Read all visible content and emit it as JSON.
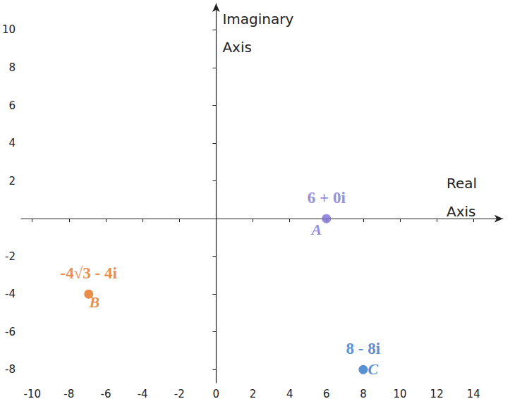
{
  "chart_data": {
    "type": "scatter",
    "x_label": "Real\nAxis",
    "y_label": "Imaginary\nAxis",
    "points": [
      {
        "name": "A",
        "label": "6 + 0i",
        "x": 6,
        "y": 0,
        "color": "#7b6fd6"
      },
      {
        "name": "B",
        "label": "-4√3 - 4i",
        "x": -6.93,
        "y": -4,
        "color": "#e2701f"
      },
      {
        "name": "C",
        "label": "8 - 8i",
        "x": 8,
        "y": -8,
        "color": "#2f74c8"
      }
    ],
    "xlim": [
      -10.6,
      15.6
    ],
    "ylim": [
      -8.7,
      11.4
    ],
    "xticks": [
      -10,
      -8,
      -6,
      -4,
      -2,
      0,
      2,
      4,
      6,
      8,
      10,
      12,
      14
    ],
    "yticks": [
      -8,
      -6,
      -4,
      -2,
      0,
      2,
      4,
      6,
      8,
      10
    ],
    "grid": false
  }
}
